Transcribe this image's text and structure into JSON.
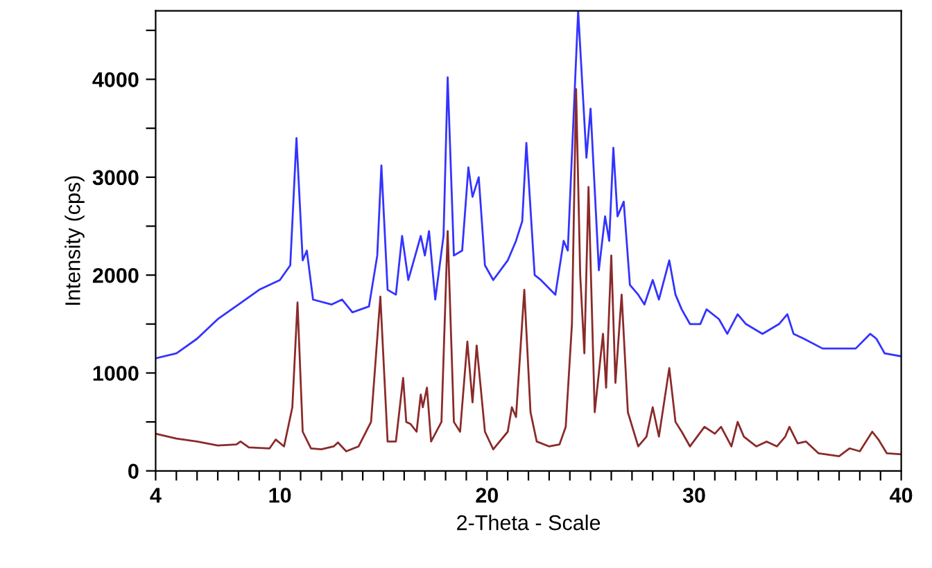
{
  "chart_data": {
    "type": "line",
    "xlabel": "2-Theta - Scale",
    "ylabel": "Intensity (cps)",
    "xlim": [
      4,
      40
    ],
    "ylim": [
      0,
      4700
    ],
    "xticks": [
      4,
      {
        "value": 5,
        "label": null
      },
      {
        "value": 6,
        "label": null
      },
      {
        "value": 7,
        "label": null
      },
      {
        "value": 8,
        "label": null
      },
      {
        "value": 9,
        "label": null
      },
      10,
      {
        "value": 11,
        "label": null
      },
      {
        "value": 12,
        "label": null
      },
      {
        "value": 13,
        "label": null
      },
      {
        "value": 14,
        "label": null
      },
      {
        "value": 15,
        "label": null
      },
      {
        "value": 16,
        "label": null
      },
      {
        "value": 17,
        "label": null
      },
      {
        "value": 18,
        "label": null
      },
      {
        "value": 19,
        "label": null
      },
      20,
      {
        "value": 21,
        "label": null
      },
      {
        "value": 22,
        "label": null
      },
      {
        "value": 23,
        "label": null
      },
      {
        "value": 24,
        "label": null
      },
      {
        "value": 25,
        "label": null
      },
      {
        "value": 26,
        "label": null
      },
      {
        "value": 27,
        "label": null
      },
      {
        "value": 28,
        "label": null
      },
      {
        "value": 29,
        "label": null
      },
      30,
      {
        "value": 31,
        "label": null
      },
      {
        "value": 32,
        "label": null
      },
      {
        "value": 33,
        "label": null
      },
      {
        "value": 34,
        "label": null
      },
      {
        "value": 35,
        "label": null
      },
      {
        "value": 36,
        "label": null
      },
      {
        "value": 37,
        "label": null
      },
      {
        "value": 38,
        "label": null
      },
      {
        "value": 39,
        "label": null
      },
      40
    ],
    "yticks": [
      0,
      {
        "value": 500,
        "label": null
      },
      1000,
      {
        "value": 1500,
        "label": null
      },
      2000,
      {
        "value": 2500,
        "label": null
      },
      3000,
      {
        "value": 3500,
        "label": null
      },
      4000,
      {
        "value": 4500,
        "label": null
      }
    ],
    "grid": false,
    "legend": false,
    "marker": "none",
    "line_style": "solid",
    "series": [
      {
        "color": "#3333ff",
        "x": [
          4.0,
          5,
          6,
          7,
          8,
          9,
          10,
          10.5,
          10.8,
          11.1,
          11.3,
          11.6,
          12.5,
          13,
          13.5,
          14.3,
          14.7,
          14.9,
          15.2,
          15.6,
          15.9,
          16.2,
          16.6,
          16.8,
          17.0,
          17.2,
          17.5,
          17.9,
          18.1,
          18.4,
          18.8,
          19.1,
          19.3,
          19.6,
          19.9,
          20.3,
          21.0,
          21.4,
          21.7,
          21.9,
          22.3,
          22.6,
          23.3,
          23.7,
          23.9,
          24.4,
          24.8,
          25.0,
          25.4,
          25.7,
          25.9,
          26.1,
          26.3,
          26.6,
          26.9,
          27.3,
          27.6,
          28.0,
          28.3,
          28.8,
          29.1,
          29.4,
          29.8,
          30.3,
          30.6,
          31.2,
          31.6,
          32.1,
          32.5,
          33.3,
          34.1,
          34.5,
          34.8,
          35.3,
          36.2,
          37.0,
          37.8,
          38.5,
          38.8,
          39.2,
          40.0
        ],
        "values": [
          1150,
          1200,
          1350,
          1550,
          1700,
          1850,
          1950,
          2100,
          3400,
          2150,
          2250,
          1750,
          1700,
          1750,
          1620,
          1680,
          2200,
          3120,
          1850,
          1800,
          2400,
          1950,
          2250,
          2400,
          2200,
          2450,
          1750,
          2400,
          4020,
          2200,
          2250,
          3100,
          2800,
          3000,
          2100,
          1950,
          2150,
          2350,
          2550,
          3350,
          2000,
          1950,
          1800,
          2350,
          2250,
          4700,
          3200,
          3700,
          2050,
          2600,
          2350,
          3300,
          2600,
          2750,
          1900,
          1800,
          1700,
          1950,
          1750,
          2150,
          1800,
          1650,
          1500,
          1500,
          1650,
          1550,
          1400,
          1600,
          1500,
          1400,
          1500,
          1600,
          1400,
          1350,
          1250,
          1250,
          1250,
          1400,
          1350,
          1200,
          1170
        ]
      },
      {
        "color": "#8b2a2a",
        "x": [
          4.0,
          5.0,
          6.0,
          7.0,
          7.9,
          8.1,
          8.5,
          9.5,
          9.8,
          10.2,
          10.6,
          10.85,
          11.1,
          11.5,
          12.0,
          12.6,
          12.8,
          13.2,
          13.8,
          14.4,
          14.85,
          15.2,
          15.6,
          15.95,
          16.1,
          16.3,
          16.6,
          16.8,
          16.9,
          17.1,
          17.3,
          17.8,
          18.1,
          18.4,
          18.7,
          19.05,
          19.3,
          19.5,
          19.9,
          20.3,
          21.0,
          21.2,
          21.4,
          21.8,
          22.1,
          22.4,
          23.0,
          23.5,
          23.8,
          24.1,
          24.3,
          24.5,
          24.7,
          24.9,
          25.2,
          25.6,
          25.75,
          26.0,
          26.2,
          26.5,
          26.8,
          27.3,
          27.7,
          28.0,
          28.3,
          28.8,
          29.1,
          29.4,
          29.8,
          30.5,
          31.0,
          31.3,
          31.8,
          32.1,
          32.4,
          33.0,
          33.5,
          34.0,
          34.4,
          34.6,
          35.0,
          35.4,
          36.0,
          37.0,
          37.5,
          38.0,
          38.6,
          38.9,
          39.3,
          40.0
        ],
        "values": [
          380,
          330,
          300,
          260,
          270,
          300,
          240,
          230,
          320,
          250,
          650,
          1720,
          400,
          230,
          220,
          250,
          290,
          200,
          250,
          500,
          1780,
          300,
          300,
          950,
          500,
          480,
          400,
          780,
          650,
          850,
          300,
          500,
          2450,
          500,
          400,
          1320,
          700,
          1280,
          400,
          220,
          400,
          650,
          550,
          1850,
          600,
          300,
          250,
          270,
          450,
          1500,
          3900,
          2000,
          1200,
          2900,
          600,
          1400,
          850,
          2200,
          900,
          1800,
          600,
          250,
          350,
          650,
          350,
          1050,
          500,
          400,
          250,
          450,
          380,
          450,
          250,
          500,
          350,
          250,
          300,
          250,
          350,
          450,
          280,
          300,
          180,
          150,
          230,
          200,
          400,
          320,
          180,
          170
        ]
      }
    ]
  }
}
